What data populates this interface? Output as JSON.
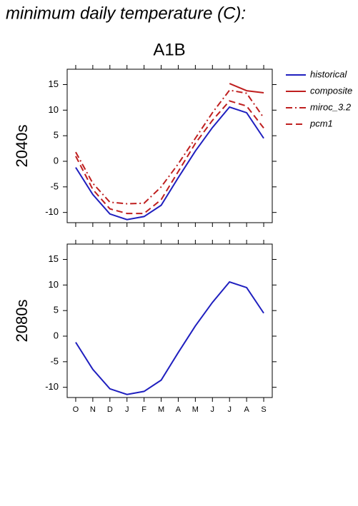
{
  "chart_data": [
    {
      "type": "line",
      "title": "minimum daily temperature (C):",
      "subtitle": "A1B",
      "ylabel": "2040s",
      "ylim": [
        -12,
        18
      ],
      "yticks": [
        -10,
        -5,
        0,
        5,
        10,
        15
      ],
      "legend": "outside right",
      "series": [
        {
          "name": "historical",
          "color": "#1f1fbf",
          "dash": "solid",
          "values": [
            -1.2,
            -6.5,
            -10.3,
            -11.4,
            -10.8,
            -8.6,
            -3.2,
            2.0,
            6.6,
            10.6,
            9.5,
            4.5
          ]
        },
        {
          "name": "composite",
          "color": "#bf1f1f",
          "dash": "solid",
          "values": [
            null,
            null,
            null,
            null,
            null,
            null,
            null,
            null,
            null,
            15.2,
            13.8,
            13.4
          ]
        },
        {
          "name": "miroc_3.2",
          "color": "#bf1f1f",
          "dash": "dashdot",
          "values": [
            1.8,
            -4.3,
            -8.0,
            -8.3,
            -8.2,
            -5.0,
            -0.5,
            4.5,
            9.5,
            13.9,
            13.3,
            8.5
          ]
        },
        {
          "name": "pcm1",
          "color": "#bf1f1f",
          "dash": "dashed",
          "values": [
            1.0,
            -5.5,
            -9.3,
            -10.2,
            -10.2,
            -7.5,
            -2.0,
            3.5,
            8.0,
            11.8,
            10.8,
            6.5
          ]
        }
      ]
    },
    {
      "type": "line",
      "ylabel": "2080s",
      "categories": [
        "O",
        "N",
        "D",
        "J",
        "F",
        "M",
        "A",
        "M",
        "J",
        "J",
        "A",
        "S"
      ],
      "ylim": [
        -12,
        18
      ],
      "yticks": [
        -10,
        -5,
        0,
        5,
        10,
        15
      ],
      "series": [
        {
          "color": "#1f1fbf",
          "dash": "solid",
          "values": [
            -1.2,
            -6.5,
            -10.3,
            -11.4,
            -10.8,
            -8.6,
            -3.2,
            2.0,
            6.6,
            10.6,
            9.5,
            4.5
          ]
        }
      ]
    }
  ]
}
